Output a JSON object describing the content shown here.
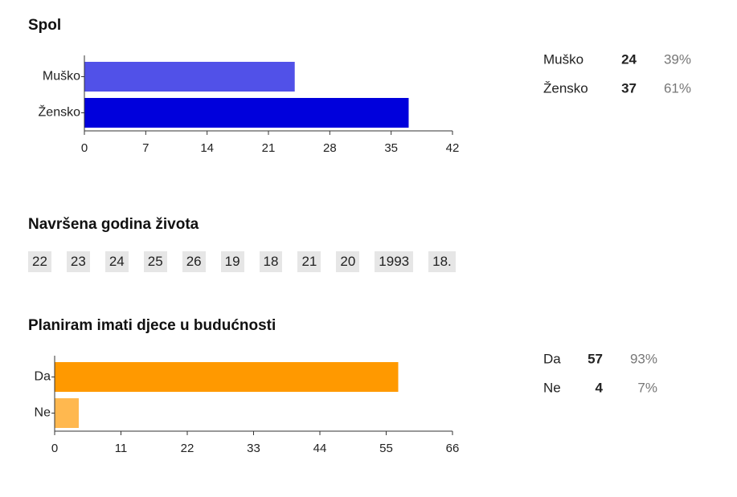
{
  "chart_data": [
    {
      "type": "bar",
      "orientation": "horizontal",
      "title": "Spol",
      "categories": [
        "Muško",
        "Žensko"
      ],
      "values": [
        24,
        37
      ],
      "colors": [
        "#5151e8",
        "#0000dc"
      ],
      "xlim": [
        0,
        42
      ],
      "xticks": [
        0,
        7,
        14,
        21,
        28,
        35,
        42
      ],
      "percent_labels": [
        "39%",
        "61%"
      ]
    },
    {
      "type": "bar",
      "orientation": "horizontal",
      "title": "Planiram imati djece u budućnosti",
      "categories": [
        "Da",
        "Ne"
      ],
      "values": [
        57,
        4
      ],
      "colors": [
        "#ff9900",
        "#ffb84f"
      ],
      "xlim": [
        0,
        66
      ],
      "xticks": [
        0,
        11,
        22,
        33,
        44,
        55,
        66
      ],
      "percent_labels": [
        "93%",
        "7%"
      ]
    }
  ],
  "age_question": {
    "title": "Navršena godina života",
    "answers": [
      "22",
      "23",
      "24",
      "25",
      "26",
      "19",
      "18",
      "21",
      "20",
      "1993",
      "18."
    ]
  }
}
